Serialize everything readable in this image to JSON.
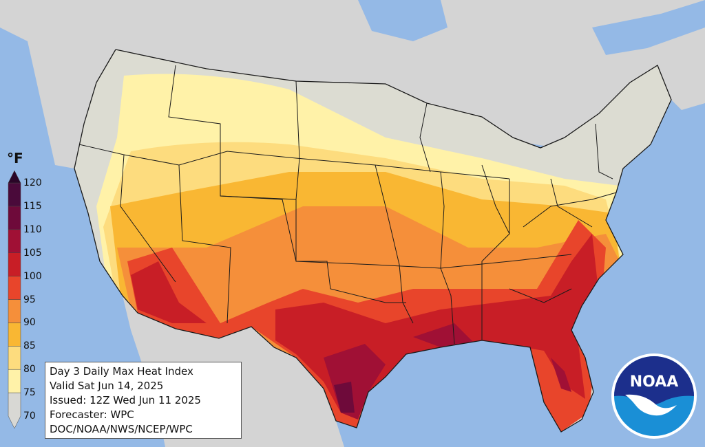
{
  "map": {
    "title_lines": [
      "Day 3 Daily Max Heat Index",
      "Valid Sat Jun 14, 2025",
      "Issued: 12Z Wed Jun 11 2025",
      "Forecaster: WPC",
      "DOC/NOAA/NWS/NCEP/WPC"
    ],
    "colors": {
      "ocean": "#94b9e6",
      "land": "#d4d4d4",
      "conus_base": "#dcdcd2",
      "border": "#1a1a1a"
    }
  },
  "legend": {
    "unit": "°F",
    "ticks": [
      "120",
      "115",
      "110",
      "105",
      "100",
      "95",
      "90",
      "85",
      "80",
      "75",
      "70"
    ],
    "bins": [
      {
        "range": "70-75",
        "color": "#d8d8d4"
      },
      {
        "range": "75-80",
        "color": "#fff2a8"
      },
      {
        "range": "80-85",
        "color": "#fddc7e"
      },
      {
        "range": "85-90",
        "color": "#f9b733"
      },
      {
        "range": "90-95",
        "color": "#f58f3a"
      },
      {
        "range": "95-100",
        "color": "#e8452b"
      },
      {
        "range": "100-105",
        "color": "#c81e26"
      },
      {
        "range": "105-110",
        "color": "#a01035"
      },
      {
        "range": "110-115",
        "color": "#6e0a3a"
      },
      {
        "range": "115-120",
        "color": "#4a0a3a"
      },
      {
        "range": "120+",
        "color": "#2a0527"
      }
    ]
  },
  "logo": {
    "text": "NOAA",
    "colors": {
      "outer": "#ffffff",
      "top": "#1c2f8c",
      "bottom": "#1a8fd6",
      "bird": "#ffffff"
    }
  }
}
